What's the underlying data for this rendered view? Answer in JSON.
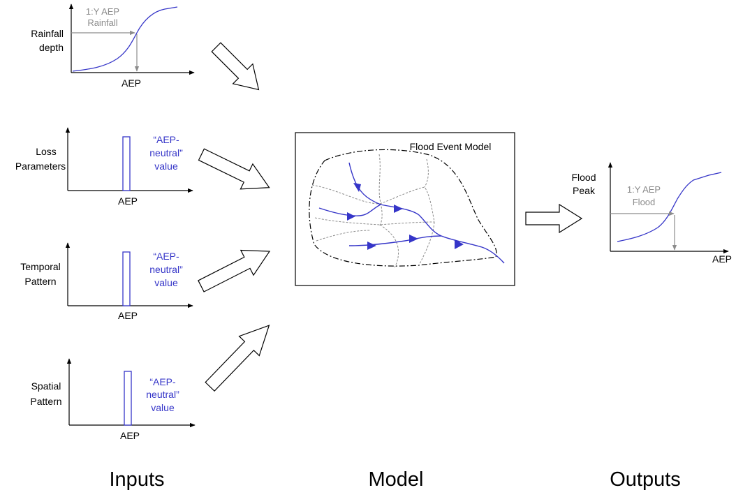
{
  "inputs": {
    "rainfall": {
      "ylabel_line1": "Rainfall",
      "ylabel_line2": "depth",
      "xlabel": "AEP",
      "annot_line1": "1:Y AEP",
      "annot_line2": "Rainfall"
    },
    "loss": {
      "ylabel_line1": "Loss",
      "ylabel_line2": "Parameters",
      "xlabel": "AEP",
      "value_line1": "“AEP-",
      "value_line2": "neutral”",
      "value_line3": "value"
    },
    "temporal": {
      "ylabel_line1": "Temporal",
      "ylabel_line2": "Pattern",
      "xlabel": "AEP",
      "value_line1": "“AEP-",
      "value_line2": "neutral”",
      "value_line3": "value"
    },
    "spatial": {
      "ylabel_line1": "Spatial",
      "ylabel_line2": "Pattern",
      "xlabel": "AEP",
      "value_line1": "“AEP-",
      "value_line2": "neutral”",
      "value_line3": "value"
    }
  },
  "model": {
    "title": "Flood Event Model"
  },
  "output": {
    "ylabel_line1": "Flood",
    "ylabel_line2": "Peak",
    "xlabel": "AEP",
    "annot_line1": "1:Y AEP",
    "annot_line2": "Flood"
  },
  "sections": {
    "inputs": "Inputs",
    "model": "Model",
    "outputs": "Outputs"
  },
  "colors": {
    "curve": "#3535c8",
    "annotation": "#8c8c8c",
    "axes": "#000000"
  }
}
